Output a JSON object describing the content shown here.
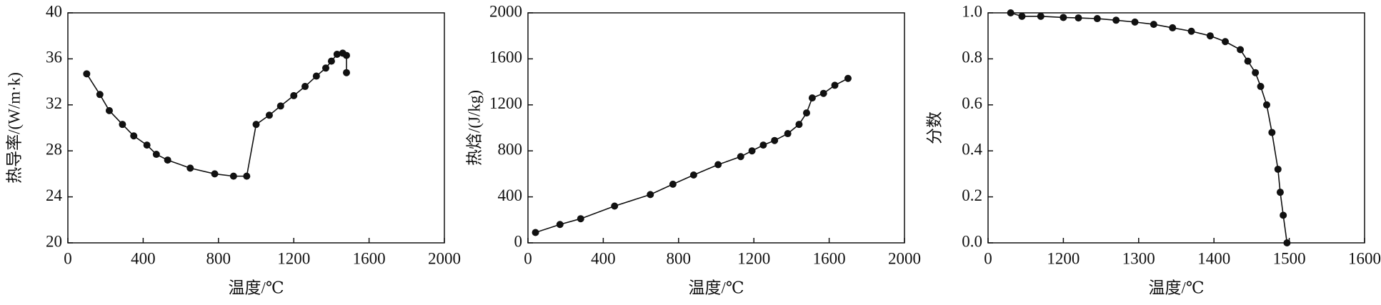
{
  "chart_data": [
    {
      "type": "line",
      "xlabel": "温度/℃",
      "ylabel": "热导率/(W/m·k)",
      "xlim": [
        0,
        2000
      ],
      "xticks": [
        0,
        400,
        800,
        1200,
        1600,
        2000
      ],
      "ylim": [
        20,
        40
      ],
      "yticks": [
        20,
        24,
        28,
        32,
        36,
        40
      ],
      "series": [
        {
          "color": "#111111",
          "x": [
            100,
            170,
            220,
            290,
            350,
            420,
            470,
            530,
            650,
            780,
            880,
            950,
            1000,
            1070,
            1130,
            1200,
            1260,
            1320,
            1370,
            1400,
            1430,
            1460,
            1480,
            1480
          ],
          "values": [
            34.7,
            32.9,
            31.5,
            30.3,
            29.3,
            28.5,
            27.7,
            27.2,
            26.5,
            26.0,
            25.8,
            25.8,
            30.3,
            31.1,
            31.9,
            32.8,
            33.6,
            34.5,
            35.2,
            35.8,
            36.4,
            36.5,
            36.3,
            34.8
          ]
        }
      ]
    },
    {
      "type": "line",
      "xlabel": "温度/℃",
      "ylabel": "热焓/(J/kg)",
      "xlim": [
        0,
        2000
      ],
      "xticks": [
        0,
        400,
        800,
        1200,
        1600,
        2000
      ],
      "ylim": [
        0,
        2000
      ],
      "yticks": [
        0,
        400,
        800,
        1200,
        1600,
        2000
      ],
      "series": [
        {
          "color": "#111111",
          "x": [
            40,
            170,
            280,
            460,
            650,
            770,
            880,
            1010,
            1130,
            1190,
            1250,
            1310,
            1380,
            1440,
            1480,
            1510,
            1570,
            1630,
            1700
          ],
          "values": [
            90,
            160,
            210,
            320,
            420,
            510,
            590,
            680,
            750,
            800,
            850,
            890,
            950,
            1030,
            1130,
            1260,
            1300,
            1370,
            1430
          ]
        }
      ]
    },
    {
      "type": "line",
      "xlabel": "温度/℃",
      "ylabel": "分数",
      "xlim": [
        1100,
        1600
      ],
      "xticks": [
        {
          "value": 1100,
          "label": "0"
        },
        1200,
        1300,
        1400,
        1500,
        1600
      ],
      "ylim": [
        0,
        1
      ],
      "yticks": [
        {
          "value": 0,
          "label": "0.0"
        },
        {
          "value": 0.2,
          "label": "0.2"
        },
        {
          "value": 0.4,
          "label": "0.4"
        },
        {
          "value": 0.6,
          "label": "0.6"
        },
        {
          "value": 0.8,
          "label": "0.8"
        },
        {
          "value": 1,
          "label": "1.0"
        }
      ],
      "series": [
        {
          "color": "#111111",
          "x": [
            1130,
            1145,
            1170,
            1200,
            1220,
            1245,
            1270,
            1295,
            1320,
            1345,
            1370,
            1395,
            1415,
            1435,
            1445,
            1455,
            1462,
            1470,
            1477,
            1485,
            1488,
            1492,
            1497
          ],
          "values": [
            1.0,
            0.985,
            0.985,
            0.98,
            0.978,
            0.975,
            0.968,
            0.96,
            0.95,
            0.935,
            0.92,
            0.9,
            0.875,
            0.84,
            0.79,
            0.74,
            0.68,
            0.6,
            0.48,
            0.32,
            0.22,
            0.12,
            0.0
          ]
        }
      ]
    }
  ]
}
